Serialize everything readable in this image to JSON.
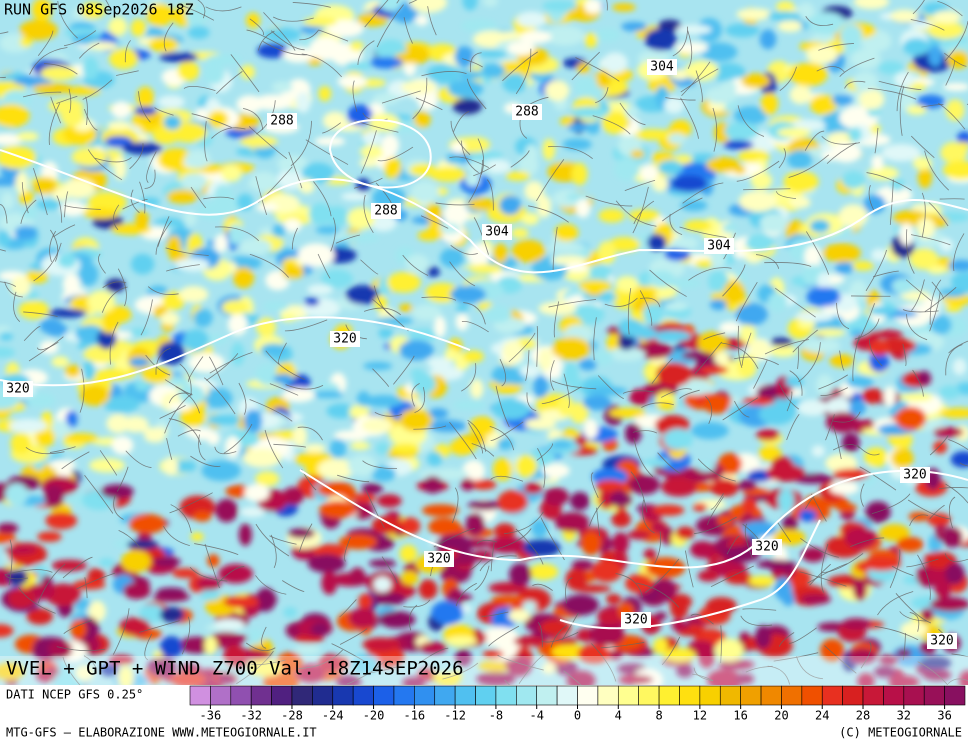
{
  "header": {
    "run": "RUN GFS 08Sep2026 18Z"
  },
  "map": {
    "title": "VVEL + GPT + WIND Z700 Val. 18Z14SEP2026",
    "contour_labels": [
      "304",
      "288",
      "288",
      "288",
      "304",
      "304",
      "320",
      "320",
      "320",
      "320",
      "320",
      "320",
      "320"
    ]
  },
  "legend": {
    "source": "DATI NCEP GFS 0.25°",
    "ticks": [
      -36,
      -32,
      -28,
      -24,
      -20,
      -16,
      -12,
      -8,
      -4,
      0,
      4,
      8,
      12,
      16,
      20,
      24,
      28,
      32,
      36
    ],
    "colors": [
      "#d090e0",
      "#b070c8",
      "#9050b0",
      "#703090",
      "#502080",
      "#302878",
      "#202c90",
      "#1838b0",
      "#1848d0",
      "#1c60e8",
      "#2478f0",
      "#3090f0",
      "#40a8f0",
      "#50c0f0",
      "#60d0f0",
      "#80e0f0",
      "#a0e8f0",
      "#c0f0f0",
      "#e0f8f8",
      "#fffff0",
      "#ffffc0",
      "#ffff90",
      "#fff860",
      "#fff030",
      "#ffe010",
      "#f8d000",
      "#f0b800",
      "#f0a000",
      "#f08800",
      "#f07000",
      "#f05000",
      "#e83020",
      "#d82020",
      "#c81838",
      "#b81048",
      "#a81050",
      "#981058",
      "#881060"
    ]
  },
  "footer": {
    "left": "MTG-GFS — ELABORAZIONE WWW.METEOGIORNALE.IT",
    "right": "(C) METEOGIORNALE"
  }
}
